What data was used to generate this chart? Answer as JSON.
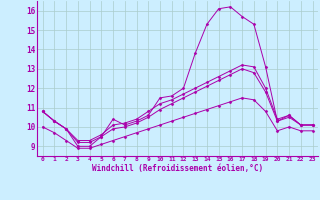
{
  "background_color": "#cceeff",
  "grid_color": "#aacccc",
  "line_color": "#aa00aa",
  "marker_color": "#aa00aa",
  "xlabel": "Windchill (Refroidissement éolien,°C)",
  "ylabel_ticks": [
    9,
    10,
    11,
    12,
    13,
    14,
    15,
    16
  ],
  "xlim": [
    -0.5,
    23.5
  ],
  "ylim": [
    8.5,
    16.5
  ],
  "xticks": [
    0,
    1,
    2,
    3,
    4,
    5,
    6,
    7,
    8,
    9,
    10,
    11,
    12,
    13,
    14,
    15,
    16,
    17,
    18,
    19,
    20,
    21,
    22,
    23
  ],
  "series": [
    [
      10.8,
      10.3,
      9.9,
      9.0,
      9.0,
      9.5,
      10.4,
      10.1,
      10.3,
      10.6,
      11.5,
      11.6,
      12.0,
      13.8,
      15.3,
      16.1,
      16.2,
      15.7,
      15.3,
      13.1,
      10.3,
      10.6,
      10.1,
      10.1
    ],
    [
      10.8,
      10.3,
      9.9,
      9.3,
      9.3,
      9.6,
      10.1,
      10.2,
      10.4,
      10.8,
      11.2,
      11.4,
      11.7,
      12.0,
      12.3,
      12.6,
      12.9,
      13.2,
      13.1,
      12.0,
      10.4,
      10.6,
      10.1,
      10.1
    ],
    [
      10.8,
      10.3,
      9.9,
      9.2,
      9.2,
      9.5,
      9.9,
      10.0,
      10.2,
      10.5,
      10.9,
      11.2,
      11.5,
      11.8,
      12.1,
      12.4,
      12.7,
      13.0,
      12.8,
      11.8,
      10.3,
      10.5,
      10.1,
      10.1
    ],
    [
      10.0,
      9.7,
      9.3,
      8.9,
      8.9,
      9.1,
      9.3,
      9.5,
      9.7,
      9.9,
      10.1,
      10.3,
      10.5,
      10.7,
      10.9,
      11.1,
      11.3,
      11.5,
      11.4,
      10.8,
      9.8,
      10.0,
      9.8,
      9.8
    ]
  ],
  "spine_color": "#aa00aa",
  "tick_label_color": "#aa00aa",
  "xlabel_color": "#aa00aa",
  "title_color": "#aa00aa"
}
